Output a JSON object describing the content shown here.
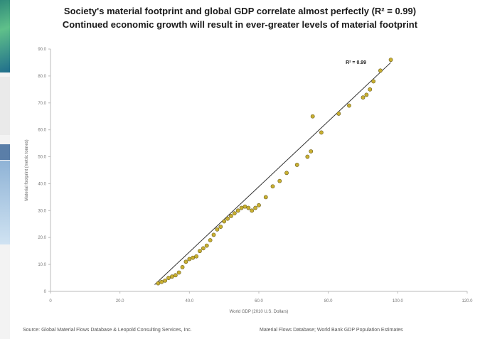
{
  "title": "Society's material footprint and global GDP correlate almost perfectly (R² = 0.99)",
  "subtitle": "Continued economic growth will result in ever-greater levels of material footprint",
  "source_left": "Source: Global Material Flows Database & Leopold Consulting Services, Inc.",
  "source_right": "Material Flows Database; World Bank GDP Population Estimates",
  "chart_data": {
    "type": "scatter",
    "title": "Society's material footprint and global GDP correlate almost perfectly (R² = 0.99)",
    "subtitle": "Continued economic growth will result in ever-greater levels of material footprint",
    "xlabel": "World GDP (2010 U.S. Dollars)",
    "ylabel": "Material footprint (metric tonnes)",
    "annotation": "R² = 0.99",
    "xlim": [
      0,
      120
    ],
    "ylim": [
      0,
      90
    ],
    "x_ticks": [
      "0",
      "20.0",
      "40.0",
      "60.0",
      "80.0",
      "100.0",
      "120.0"
    ],
    "y_ticks": [
      "0",
      "10.0",
      "20.0",
      "30.0",
      "40.0",
      "50.0",
      "60.0",
      "70.0",
      "80.0",
      "90.0"
    ],
    "trendline": {
      "x": [
        30,
        98
      ],
      "y": [
        2.5,
        85
      ]
    },
    "x": [
      31,
      32,
      33,
      34,
      35,
      36,
      37,
      38,
      39,
      40,
      41,
      42,
      43,
      44,
      45,
      46,
      47,
      48,
      49,
      50,
      51,
      52,
      53,
      54,
      55,
      56,
      57,
      58,
      59,
      60,
      62,
      64,
      66,
      68,
      71,
      74,
      75,
      75.5,
      78,
      83,
      86,
      90,
      91,
      92,
      93,
      95,
      98
    ],
    "y": [
      3,
      3.5,
      4,
      5,
      5.5,
      6,
      7,
      9,
      11,
      12,
      12.5,
      13,
      15,
      16,
      17,
      19,
      21,
      23,
      24,
      26,
      27,
      28,
      29,
      30,
      31,
      31.5,
      31,
      30,
      31,
      32,
      35,
      39,
      41,
      44,
      47,
      50,
      52,
      65,
      59,
      66,
      69,
      72,
      73,
      75,
      78,
      82,
      86
    ],
    "point_color": "#c9b032",
    "line_color": "#333333",
    "grid": false
  }
}
